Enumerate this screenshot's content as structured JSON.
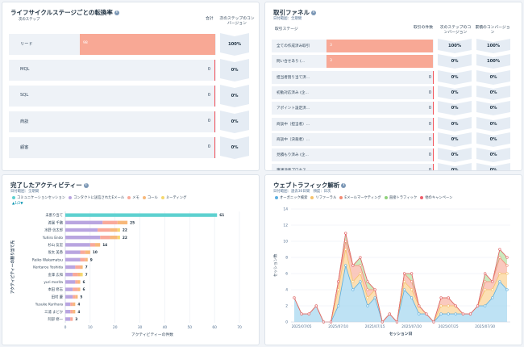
{
  "lifecycle": {
    "title": "ライフサイクルステージごとの転換率",
    "col_next_stage": "次のステップ",
    "col_total": "合計",
    "col_conversion": "次のステップのコンバージョン",
    "rows": [
      {
        "label": "リード",
        "value": "98",
        "conversion": "100%"
      },
      {
        "label": "MQL",
        "value": "0",
        "conversion": "0%"
      },
      {
        "label": "SQL",
        "value": "0",
        "conversion": "0%"
      },
      {
        "label": "商談",
        "value": "0",
        "conversion": "0%"
      },
      {
        "label": "顧客",
        "value": "0",
        "conversion": "0%"
      }
    ]
  },
  "funnel": {
    "title": "取引ファネル",
    "date_range": "日付範囲：全期間",
    "col_stage": "取引ステージ",
    "col_count": "取引の件数",
    "col_next_conv": "次のステップのコンバージョン",
    "col_cum_conv": "累積のコンバージョン",
    "rows": [
      {
        "label": "全ての作成済み取引",
        "value": "3",
        "next": "100%",
        "cum": "100%"
      },
      {
        "label": "問い合せあり (...",
        "value": "3",
        "next": "0%",
        "cum": "100%"
      },
      {
        "label": "担当者割り当て済...",
        "value": "0",
        "next": "0%",
        "cum": "0%"
      },
      {
        "label": "初動対応済み (企...",
        "value": "0",
        "next": "0%",
        "cum": "0%"
      },
      {
        "label": "アポイント設定済...",
        "value": "0",
        "next": "0%",
        "cum": "0%"
      },
      {
        "label": "商談中（担当者）...",
        "value": "0",
        "next": "0%",
        "cum": "0%"
      },
      {
        "label": "商談中（決裁者）...",
        "value": "0",
        "next": "0%",
        "cum": "0%"
      },
      {
        "label": "見積もり済み (企...",
        "value": "0",
        "next": "0%",
        "cum": "0%"
      },
      {
        "label": "稟議決裁プロセス...",
        "value": "0",
        "next": "0%",
        "cum": "0%"
      }
    ]
  },
  "activity": {
    "title": "完了したアクティビティー",
    "date_range": "日付範囲：全期間",
    "page_indicator": "1/2",
    "colors": {
      "communication": "#5ed1d0",
      "email": "#b9a5e0",
      "memo": "#f9a99a",
      "call": "#f7b87a",
      "meeting": "#f5d86e"
    },
    "chart_data": {
      "type": "bar",
      "orientation": "horizontal",
      "stacked": true,
      "ylabel": "アクティビティーの割り当て先",
      "xlabel": "アクティビティーの件数",
      "xlim": [
        0,
        70
      ],
      "xticks": [
        "0",
        "10",
        "20",
        "30",
        "40",
        "50",
        "60",
        "70"
      ],
      "categories": [
        "未割り当て",
        "渡邊 千鶴",
        "水野 信太郎",
        "Yuhiro Endo",
        "杉山 友宏",
        "坂太 美香",
        "Reiko Wakamatsu",
        "Kentarou Yoshida",
        "金澤 広和",
        "yuri morita",
        "本田 修志",
        "田村 慶",
        "Yusuke Kurihara",
        "三浦 まどか",
        "阿部 修一"
      ],
      "totals": [
        61,
        25,
        22,
        22,
        14,
        10,
        9,
        7,
        7,
        6,
        6,
        5,
        4,
        4,
        3
      ],
      "series": [
        {
          "name": "コミュニケーションセッション",
          "values": [
            61,
            0,
            0,
            0,
            0,
            0,
            0,
            0,
            0,
            0,
            0,
            0,
            0,
            0,
            0
          ]
        },
        {
          "name": "コンタクトに送信されたEメール",
          "values": [
            0,
            15,
            13,
            14,
            10,
            6,
            6,
            4,
            3,
            4,
            3,
            3,
            2,
            2,
            2
          ]
        },
        {
          "name": "メモ",
          "values": [
            0,
            6,
            5,
            4,
            2,
            2,
            2,
            2,
            2,
            1,
            2,
            1,
            1,
            1,
            1
          ]
        },
        {
          "name": "コール",
          "values": [
            0,
            4,
            3,
            3,
            2,
            2,
            1,
            1,
            1,
            1,
            1,
            1,
            1,
            1,
            0
          ]
        },
        {
          "name": "ミーティング",
          "values": [
            0,
            0,
            1,
            1,
            0,
            0,
            0,
            0,
            1,
            0,
            0,
            0,
            0,
            0,
            0
          ]
        }
      ]
    }
  },
  "traffic": {
    "title": "ウェブトラフィック解析",
    "date_range": "日付範囲：過去30日間　頻度：日次",
    "colors": {
      "organic": "#a8d8f0",
      "referral": "#fbd49a",
      "email": "#f8b7a8",
      "direct": "#b9e3a9",
      "other": "#f2a9b0"
    },
    "chart_data": {
      "type": "area",
      "stacked": true,
      "xlabel": "セッション日",
      "ylabel": "セッション数",
      "ylim": [
        0,
        14
      ],
      "yticks": [
        "0",
        "2",
        "4",
        "6",
        "8",
        "10",
        "12",
        "14"
      ],
      "xtick_labels": [
        "2025/07/05",
        "2025/07/10",
        "2025/07/15",
        "2025/07/20",
        "2025/07/25",
        "2025/07/30"
      ],
      "xtick_index": [
        1,
        6,
        11,
        16,
        21,
        26
      ],
      "series": [
        {
          "name": "オーガニック検索",
          "values": [
            3,
            1,
            1,
            2,
            0,
            0,
            2,
            7,
            4,
            5,
            2,
            3,
            0,
            1,
            0,
            4,
            3,
            1,
            1,
            0,
            1,
            1,
            1,
            1,
            1,
            2,
            2,
            3,
            5,
            4
          ]
        },
        {
          "name": "リファーラル",
          "values": [
            0,
            0,
            0,
            0,
            0,
            0,
            2,
            2,
            1,
            1,
            1,
            1,
            0,
            0,
            0,
            1,
            1,
            1,
            0,
            0,
            1,
            1,
            1,
            0,
            0,
            0,
            2,
            1,
            1,
            2
          ]
        },
        {
          "name": "Eメールマーケティング",
          "values": [
            0,
            0,
            0,
            0,
            0,
            0,
            1,
            1,
            2,
            1,
            1,
            0,
            0,
            0,
            0,
            1,
            1,
            0,
            0,
            0,
            1,
            1,
            0,
            0,
            0,
            0,
            1,
            1,
            2,
            1
          ]
        },
        {
          "name": "直接トラフィック",
          "values": [
            0,
            0,
            0,
            0,
            0,
            0,
            0,
            1,
            0,
            1,
            1,
            0,
            0,
            0,
            0,
            0,
            1,
            0,
            0,
            0,
            0,
            0,
            0,
            0,
            0,
            0,
            1,
            0,
            1,
            1
          ]
        },
        {
          "name": "他のキャンペーン",
          "values": [
            0,
            0,
            0,
            0,
            0,
            0,
            0,
            0,
            0,
            0,
            0,
            0,
            0,
            0,
            0,
            0,
            0,
            0,
            0,
            0,
            0,
            0,
            0,
            0,
            0,
            0,
            0,
            0,
            0,
            0
          ]
        }
      ]
    }
  }
}
